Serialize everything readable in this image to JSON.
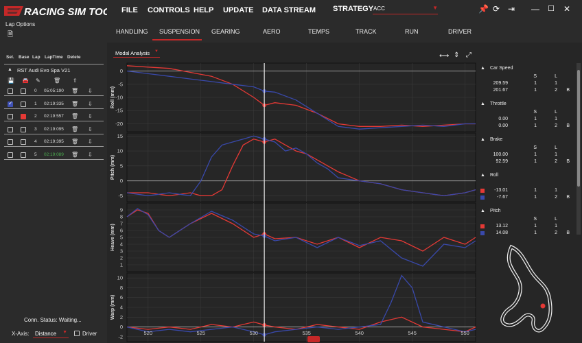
{
  "app": {
    "logo_text": "RACING SIM TOOLS",
    "menu": [
      "FILE",
      "CONTROLS",
      "HELP",
      "UPDATE",
      "DATA STREAM"
    ],
    "strategy_label": "STRATEGY",
    "strategy_value": "ACC",
    "lap_options_label": "Lap Options"
  },
  "tabs": [
    "HANDLING",
    "SUSPENSION",
    "GEARING",
    "AERO",
    "TEMPS",
    "TRACK",
    "RUN",
    "DRIVER"
  ],
  "active_tab": "SUSPENSION",
  "analysis_select": "Modal Analysis",
  "laps": {
    "headers": [
      "Sel.",
      "Base",
      "Lap",
      "LapTime",
      "Delete"
    ],
    "car_name": "RST Audi Evo Spa V21",
    "rows": [
      {
        "lap": "0",
        "time": "05:05:190",
        "sel": false,
        "base": false,
        "time_color": "#dddddd"
      },
      {
        "lap": "1",
        "time": "02:19:335",
        "sel": true,
        "base": false,
        "time_color": "#dddddd"
      },
      {
        "lap": "2",
        "time": "02:19:557",
        "sel": false,
        "base": true,
        "time_color": "#dddddd"
      },
      {
        "lap": "3",
        "time": "02:19:095",
        "sel": false,
        "base": false,
        "time_color": "#dddddd"
      },
      {
        "lap": "4",
        "time": "02:19:395",
        "sel": false,
        "base": false,
        "time_color": "#dddddd"
      },
      {
        "lap": "5",
        "time": "02:19:089",
        "sel": false,
        "base": false,
        "time_color": "#4caf50"
      }
    ]
  },
  "status": {
    "conn_status": "Conn. Status: Waiting...",
    "xaxis_label": "X-Axis:",
    "xaxis_value": "Distance",
    "driver_label": "Driver"
  },
  "colors": {
    "red": "#e53935",
    "blue": "#3949ab",
    "accent": "#c62828"
  },
  "chart_data": {
    "type": "line",
    "x_range": [
      518,
      551
    ],
    "x_ticks": [
      520,
      525,
      530,
      535,
      540,
      545,
      550
    ],
    "cursor_x": 531,
    "panels": [
      {
        "ylabel": "Roll (mm)",
        "ylim": [
          -23,
          3
        ],
        "yticks": [
          0,
          -5,
          -10,
          -15,
          -20
        ],
        "series": [
          {
            "color": "red",
            "x": [
              518,
              520,
              522,
              524,
              526,
              528,
              530,
              531,
              532,
              534,
              536,
              538,
              540,
              542,
              544,
              546,
              548,
              550,
              551
            ],
            "y": [
              2,
              1.5,
              1,
              -0.5,
              -2,
              -5,
              -10,
              -13,
              -12,
              -13,
              -16,
              -20,
              -21,
              -21,
              -20.5,
              -21,
              -20.5,
              -20,
              -20
            ]
          },
          {
            "color": "blue",
            "x": [
              518,
              520,
              522,
              524,
              526,
              528,
              530,
              531,
              532,
              534,
              536,
              538,
              540,
              542,
              544,
              546,
              548,
              550,
              551
            ],
            "y": [
              0,
              -1,
              -2,
              -3,
              -4,
              -5,
              -6,
              -7.6,
              -8,
              -11,
              -16,
              -21,
              -22,
              -21.5,
              -21,
              -20.5,
              -21,
              -20,
              -20
            ]
          }
        ]
      },
      {
        "ylabel": "Pitch (mm)",
        "ylim": [
          -7,
          16
        ],
        "yticks": [
          15,
          10,
          5,
          0,
          -5
        ],
        "series": [
          {
            "color": "red",
            "x": [
              518,
              520,
              522,
              524,
              525,
              526,
              527,
              528,
              529,
              530,
              531,
              532,
              533,
              534,
              535,
              536,
              537,
              538,
              540,
              542,
              544,
              546,
              548,
              550,
              551
            ],
            "y": [
              -4,
              -4,
              -5,
              -4,
              -5,
              -5,
              -3,
              5,
              12,
              14,
              13,
              14,
              12,
              10,
              9,
              7,
              5,
              3,
              0,
              -1,
              -3,
              -4,
              -5,
              -4,
              -3
            ]
          },
          {
            "color": "blue",
            "x": [
              518,
              520,
              522,
              524,
              525,
              526,
              527,
              528,
              529,
              530,
              531,
              532,
              533,
              534,
              535,
              536,
              537,
              538,
              540,
              542,
              544,
              546,
              548,
              550,
              551
            ],
            "y": [
              -4,
              -5,
              -4,
              -5,
              0,
              8,
              12,
              13,
              14,
              15,
              14,
              13,
              10,
              11,
              9,
              6,
              4,
              1,
              0,
              -1,
              -3,
              -4,
              -5,
              -4,
              -3
            ]
          }
        ]
      },
      {
        "ylabel": "Heave (mm)",
        "ylim": [
          0,
          10
        ],
        "yticks": [
          9,
          8,
          7,
          6,
          5,
          4,
          3,
          2,
          1
        ],
        "series": [
          {
            "color": "red",
            "x": [
              518,
              519,
              520,
              521,
              522,
              524,
              526,
              528,
              530,
              531,
              532,
              534,
              536,
              538,
              540,
              542,
              544,
              546,
              548,
              550,
              551
            ],
            "y": [
              8,
              9,
              8.5,
              6,
              5,
              7,
              8.5,
              7,
              5,
              5.5,
              4.8,
              5,
              4,
              5,
              3.5,
              5,
              4.5,
              3,
              5,
              4,
              5
            ]
          },
          {
            "color": "blue",
            "x": [
              518,
              519,
              520,
              521,
              522,
              524,
              526,
              528,
              530,
              531,
              532,
              534,
              536,
              538,
              540,
              542,
              544,
              546,
              548,
              550,
              551
            ],
            "y": [
              8,
              9.2,
              8.3,
              6,
              5,
              7,
              8.8,
              7.5,
              5.5,
              5.2,
              4.5,
              5,
              3.5,
              5,
              3.8,
              4.5,
              2,
              0.8,
              4,
              3.5,
              4.5
            ]
          }
        ]
      },
      {
        "ylabel": "Warp (mm)",
        "ylim": [
          -3,
          11
        ],
        "yticks": [
          10,
          8,
          6,
          4,
          2,
          0,
          -2
        ],
        "series": [
          {
            "color": "red",
            "x": [
              518,
              520,
              522,
              524,
              526,
              528,
              530,
              531,
              532,
              534,
              536,
              538,
              540,
              542,
              544,
              546,
              548,
              550,
              551
            ],
            "y": [
              0,
              -0.5,
              0,
              -0.5,
              0.5,
              0,
              1,
              0.4,
              0,
              -0.5,
              0.5,
              0,
              -0.5,
              1,
              2,
              0,
              -0.5,
              -1,
              0
            ]
          },
          {
            "color": "blue",
            "x": [
              518,
              520,
              522,
              524,
              526,
              528,
              530,
              531,
              532,
              534,
              536,
              538,
              540,
              542,
              543,
              544,
              545,
              546,
              548,
              550,
              551
            ],
            "y": [
              0,
              -1,
              -0.5,
              -1,
              -0.5,
              0,
              -1,
              -1.6,
              -1,
              -0.5,
              0,
              -0.5,
              0,
              0.5,
              5,
              10.5,
              8,
              1,
              0,
              -1,
              -0.5
            ]
          }
        ]
      }
    ]
  },
  "readouts": [
    {
      "title": "Car Speed",
      "col_s": "S",
      "col_l": "L",
      "rows": [
        {
          "swatch": "",
          "val": "209.59",
          "s": "1",
          "l": "1",
          "b": ""
        },
        {
          "swatch": "",
          "val": "201.67",
          "s": "1",
          "l": "2",
          "b": "B"
        }
      ]
    },
    {
      "title": "Throttle",
      "col_s": "S",
      "col_l": "L",
      "rows": [
        {
          "swatch": "",
          "val": "0.00",
          "s": "1",
          "l": "1",
          "b": ""
        },
        {
          "swatch": "",
          "val": "0.00",
          "s": "1",
          "l": "2",
          "b": "B"
        }
      ]
    },
    {
      "title": "Brake",
      "col_s": "S",
      "col_l": "L",
      "rows": [
        {
          "swatch": "",
          "val": "100.00",
          "s": "1",
          "l": "1",
          "b": ""
        },
        {
          "swatch": "",
          "val": "92.59",
          "s": "1",
          "l": "2",
          "b": "B"
        }
      ]
    },
    {
      "title": "Roll",
      "col_s": "",
      "col_l": "",
      "rows": [
        {
          "swatch": "#e53935",
          "val": "-13.01",
          "s": "1",
          "l": "1",
          "b": ""
        },
        {
          "swatch": "#3949ab",
          "val": "-7.67",
          "s": "1",
          "l": "2",
          "b": "B"
        }
      ]
    },
    {
      "title": "Pitch",
      "col_s": "S",
      "col_l": "L",
      "rows": [
        {
          "swatch": "#e53935",
          "val": "13.12",
          "s": "1",
          "l": "1",
          "b": ""
        },
        {
          "swatch": "#3949ab",
          "val": "14.08",
          "s": "1",
          "l": "2",
          "b": "B"
        }
      ]
    }
  ]
}
